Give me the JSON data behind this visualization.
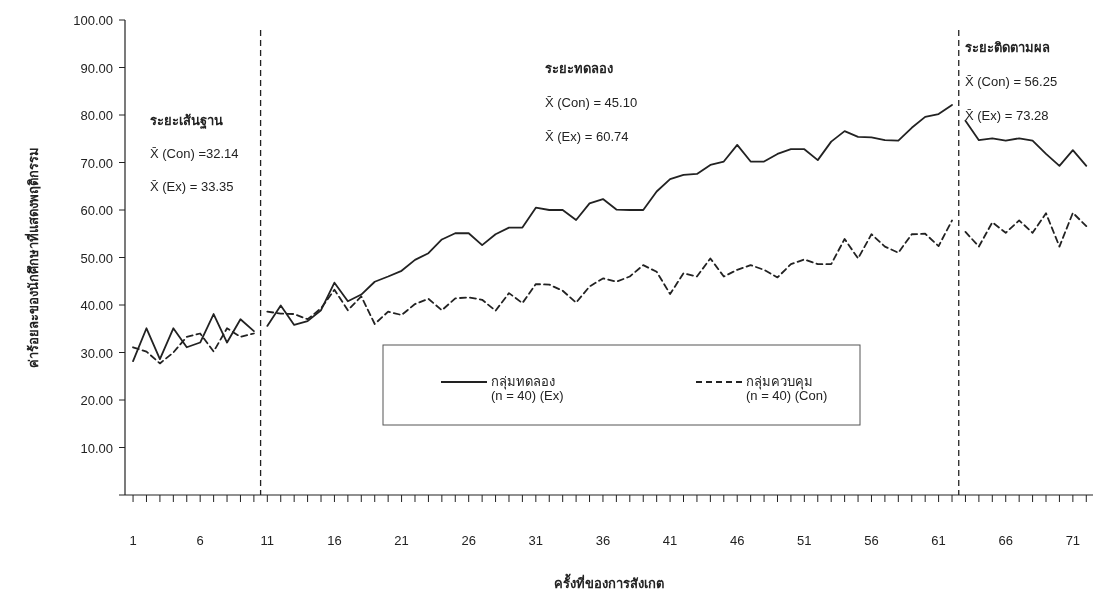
{
  "chart_data": {
    "type": "line",
    "xlabel": "ครั้งที่ของการสังเกต",
    "ylabel": "ค่าร้อยละของนักศึกษาที่แสดงพฤติกรรม",
    "x": [
      1,
      2,
      3,
      4,
      5,
      6,
      7,
      8,
      9,
      10,
      11,
      12,
      13,
      14,
      15,
      16,
      17,
      18,
      19,
      20,
      21,
      22,
      23,
      24,
      25,
      26,
      27,
      28,
      29,
      30,
      31,
      32,
      33,
      34,
      35,
      36,
      37,
      38,
      39,
      40,
      41,
      42,
      43,
      44,
      45,
      46,
      47,
      48,
      49,
      50,
      51,
      52,
      53,
      54,
      55,
      56,
      57,
      58,
      59,
      60,
      61,
      62,
      63,
      64,
      65,
      66,
      67,
      68,
      69,
      70,
      71,
      72
    ],
    "series": [
      {
        "name": "กลุ่มทดลอง\n(n = 40)    (Ex)",
        "color": "#222222",
        "line_style": "solid",
        "values": [
          28.2,
          35.1,
          28.6,
          35.1,
          31.1,
          32.1,
          38.1,
          32.1,
          37.0,
          34.5,
          35.6,
          39.9,
          35.8,
          36.6,
          38.9,
          44.7,
          40.8,
          42.2,
          44.9,
          46.0,
          47.2,
          49.5,
          50.9,
          53.8,
          55.1,
          55.1,
          52.6,
          54.9,
          56.3,
          56.3,
          60.5,
          60.0,
          60.0,
          57.9,
          61.4,
          62.3,
          60.1,
          60.0,
          60.0,
          63.9,
          66.5,
          67.4,
          67.6,
          69.5,
          70.2,
          73.7,
          70.2,
          70.2,
          71.8,
          72.8,
          72.8,
          70.5,
          74.4,
          76.6,
          75.4,
          75.3,
          74.7,
          74.6,
          77.3,
          79.6,
          80.2,
          82.1,
          78.8,
          74.7,
          75.1,
          74.6,
          75.1,
          74.6,
          71.8,
          69.3,
          72.6,
          69.3
        ]
      },
      {
        "name": "กลุ่มควบคุม\n(n = 40)    (Con)",
        "color": "#222222",
        "line_style": "dashed",
        "values": [
          31.1,
          30.2,
          27.7,
          30.0,
          33.3,
          34.0,
          30.2,
          35.1,
          33.3,
          34.0,
          38.6,
          38.2,
          38.1,
          37.0,
          39.3,
          43.2,
          38.9,
          41.8,
          36.0,
          38.6,
          37.9,
          40.2,
          41.3,
          38.9,
          41.4,
          41.6,
          41.1,
          38.8,
          42.5,
          40.4,
          44.4,
          44.3,
          43.0,
          40.5,
          43.9,
          45.6,
          44.9,
          46.0,
          48.4,
          47.0,
          42.3,
          46.7,
          46.0,
          49.8,
          46.0,
          47.4,
          48.4,
          47.4,
          45.8,
          48.6,
          49.6,
          48.6,
          48.6,
          53.9,
          49.8,
          54.9,
          52.3,
          51.0,
          54.9,
          55.0,
          52.4,
          57.8,
          55.4,
          52.3,
          57.4,
          55.2,
          57.8,
          55.2,
          59.3,
          52.3,
          59.4,
          56.6
        ]
      }
    ],
    "xlim": [
      0.4,
      72.5
    ],
    "xticks": [
      1,
      {
        "value": 2,
        "label": null
      },
      {
        "value": 3,
        "label": null
      },
      {
        "value": 4,
        "label": null
      },
      {
        "value": 5,
        "label": null
      },
      6,
      {
        "value": 7,
        "label": null
      },
      {
        "value": 8,
        "label": null
      },
      {
        "value": 9,
        "label": null
      },
      {
        "value": 10,
        "label": null
      },
      11,
      {
        "value": 12,
        "label": null
      },
      {
        "value": 13,
        "label": null
      },
      {
        "value": 14,
        "label": null
      },
      {
        "value": 15,
        "label": null
      },
      16,
      {
        "value": 17,
        "label": null
      },
      {
        "value": 18,
        "label": null
      },
      {
        "value": 19,
        "label": null
      },
      {
        "value": 20,
        "label": null
      },
      21,
      {
        "value": 22,
        "label": null
      },
      {
        "value": 23,
        "label": null
      },
      {
        "value": 24,
        "label": null
      },
      {
        "value": 25,
        "label": null
      },
      26,
      {
        "value": 27,
        "label": null
      },
      {
        "value": 28,
        "label": null
      },
      {
        "value": 29,
        "label": null
      },
      {
        "value": 30,
        "label": null
      },
      31,
      {
        "value": 32,
        "label": null
      },
      {
        "value": 33,
        "label": null
      },
      {
        "value": 34,
        "label": null
      },
      {
        "value": 35,
        "label": null
      },
      36,
      {
        "value": 37,
        "label": null
      },
      {
        "value": 38,
        "label": null
      },
      {
        "value": 39,
        "label": null
      },
      {
        "value": 40,
        "label": null
      },
      41,
      {
        "value": 42,
        "label": null
      },
      {
        "value": 43,
        "label": null
      },
      {
        "value": 44,
        "label": null
      },
      {
        "value": 45,
        "label": null
      },
      46,
      {
        "value": 47,
        "label": null
      },
      {
        "value": 48,
        "label": null
      },
      {
        "value": 49,
        "label": null
      },
      {
        "value": 50,
        "label": null
      },
      51,
      {
        "value": 52,
        "label": null
      },
      {
        "value": 53,
        "label": null
      },
      {
        "value": 54,
        "label": null
      },
      {
        "value": 55,
        "label": null
      },
      56,
      {
        "value": 57,
        "label": null
      },
      {
        "value": 58,
        "label": null
      },
      {
        "value": 59,
        "label": null
      },
      {
        "value": 60,
        "label": null
      },
      61,
      {
        "value": 62,
        "label": null
      },
      {
        "value": 63,
        "label": null
      },
      {
        "value": 64,
        "label": null
      },
      {
        "value": 65,
        "label": null
      },
      66,
      {
        "value": 67,
        "label": null
      },
      {
        "value": 68,
        "label": null
      },
      {
        "value": 69,
        "label": null
      },
      {
        "value": 70,
        "label": null
      },
      71,
      {
        "value": 72,
        "label": null
      }
    ],
    "ylim": [
      0,
      100
    ],
    "yticks": [
      {
        "value": 0,
        "label": null
      },
      {
        "value": 10,
        "label": "10.00"
      },
      {
        "value": 20,
        "label": "20.00"
      },
      {
        "value": 30,
        "label": "30.00"
      },
      {
        "value": 40,
        "label": "40.00"
      },
      {
        "value": 50,
        "label": "50.00"
      },
      {
        "value": 60,
        "label": "60.00"
      },
      {
        "value": 70,
        "label": "70.00"
      },
      {
        "value": 80,
        "label": "80.00"
      },
      {
        "value": 90,
        "label": "90.00"
      },
      {
        "value": 100,
        "label": "100.00"
      }
    ],
    "ref_lines": [
      {
        "axis": "x",
        "value": 10.5,
        "label": null,
        "color": "#222222",
        "line_style": "dashed"
      },
      {
        "axis": "x",
        "value": 62.5,
        "label": null,
        "color": "#222222",
        "line_style": "dashed"
      }
    ],
    "annotations": [
      "ระยะเส้นฐาน",
      "X̄ (Con) =32.14",
      "X̄ (Ex)   = 33.35",
      "ระยะทดลอง",
      "X̄ (Con) = 45.10",
      "X̄ (Ex)   = 60.74",
      "ระยะติดตามผล",
      "X̄ (Con) = 56.25",
      "X̄ (Ex)   = 73.28"
    ],
    "legend": "bottom",
    "grid": false,
    "marker": "none"
  }
}
